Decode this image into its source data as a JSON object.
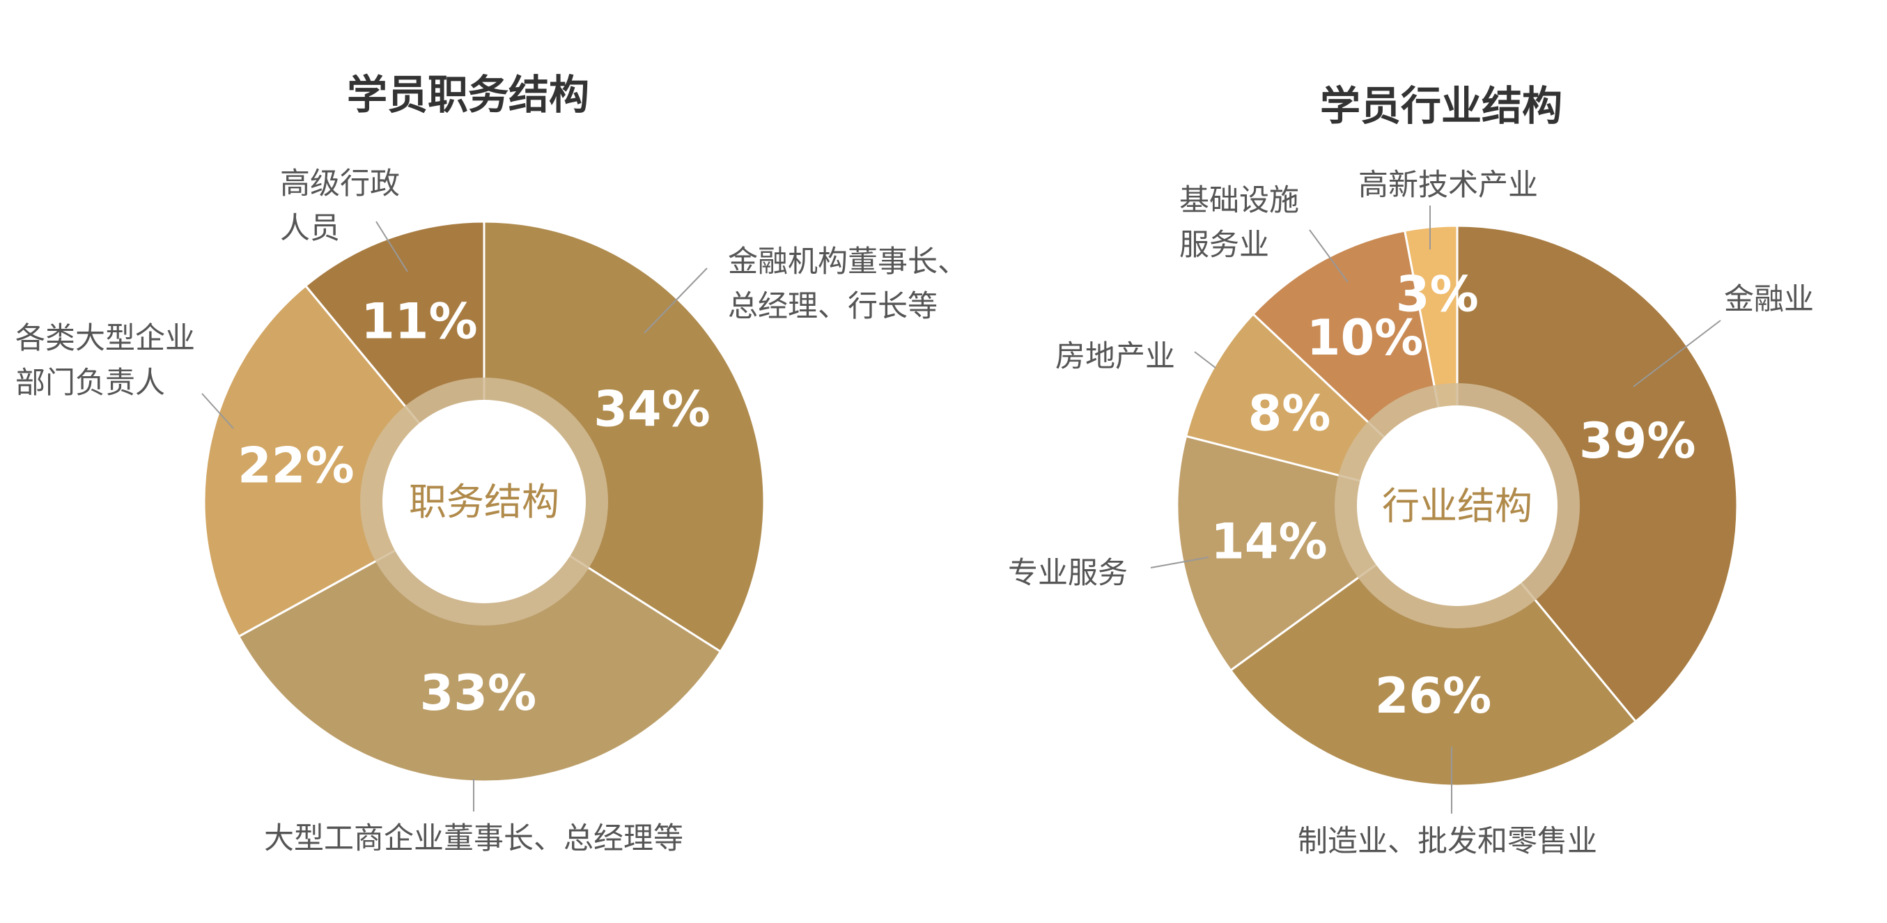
{
  "colors": {
    "ring": "#d2bc96",
    "center_text": "#b08a4a",
    "slice_stroke": "#ffffff"
  },
  "chart_data": [
    {
      "type": "pie",
      "donut": true,
      "title": "学员职务结构",
      "center_label": "职务结构",
      "slices": [
        {
          "label": "金融机构董事长、总经理、行长等",
          "value": 34,
          "value_label": "34%",
          "color": "#af8b4e",
          "lines": [
            "金融机构董事长、",
            "总经理、行长等"
          ]
        },
        {
          "label": "大型工商企业董事长、总经理等",
          "value": 33,
          "value_label": "33%",
          "color": "#bb9d68",
          "lines": [
            "大型工商企业董事长、总经理等"
          ]
        },
        {
          "label": "各类大型企业部门负责人",
          "value": 22,
          "value_label": "22%",
          "color": "#d2a664",
          "lines": [
            "各类大型企业",
            "部门负责人"
          ]
        },
        {
          "label": "高级行政人员",
          "value": 11,
          "value_label": "11%",
          "color": "#a87b41",
          "lines": [
            "高级行政",
            "人员"
          ]
        }
      ]
    },
    {
      "type": "pie",
      "donut": true,
      "title": "学员行业结构",
      "center_label": "行业结构",
      "slices": [
        {
          "label": "金融业",
          "value": 39,
          "value_label": "39%",
          "color": "#a87c42",
          "lines": [
            "金融业"
          ]
        },
        {
          "label": "制造业、批发和零售业",
          "value": 26,
          "value_label": "26%",
          "color": "#b28e51",
          "lines": [
            "制造业、批发和零售业"
          ]
        },
        {
          "label": "专业服务",
          "value": 14,
          "value_label": "14%",
          "color": "#bf9f6a",
          "lines": [
            "专业服务"
          ]
        },
        {
          "label": "房地产业",
          "value": 8,
          "value_label": "8%",
          "color": "#d3a866",
          "lines": [
            "房地产业"
          ]
        },
        {
          "label": "基础设施服务业",
          "value": 10,
          "value_label": "10%",
          "color": "#c98a54",
          "lines": [
            "基础设施",
            "服务业"
          ]
        },
        {
          "label": "高新技术产业",
          "value": 3,
          "value_label": "3%",
          "color": "#efbb6c",
          "lines": [
            "高新技术产业"
          ]
        }
      ]
    }
  ]
}
